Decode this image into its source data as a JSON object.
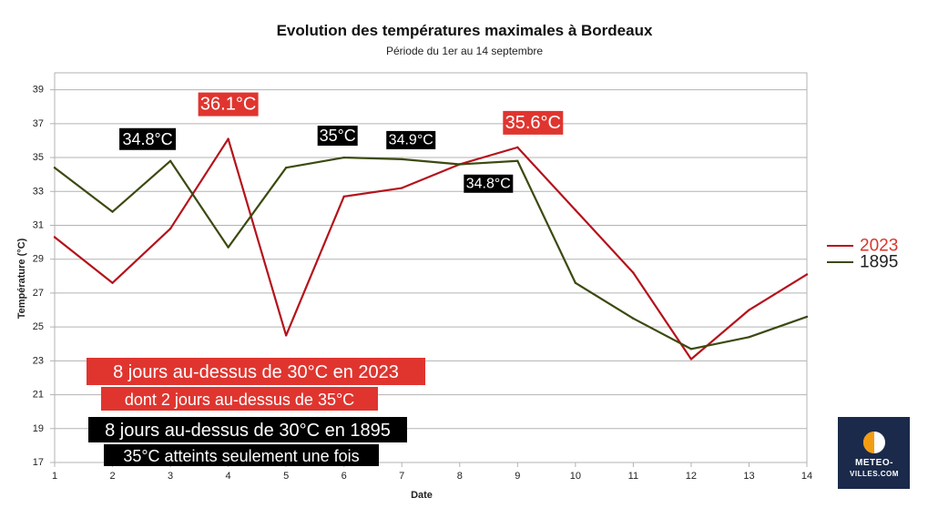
{
  "chart_data": {
    "type": "line",
    "title": "Evolution des températures maximales à Bordeaux",
    "subtitle": "Période du 1er au 14 septembre",
    "xlabel": "Date",
    "ylabel": "Température (°C)",
    "x": [
      1,
      2,
      3,
      4,
      5,
      6,
      7,
      8,
      9,
      10,
      11,
      12,
      13,
      14
    ],
    "ylim": [
      17,
      40
    ],
    "yticks": [
      17,
      19,
      21,
      23,
      25,
      27,
      29,
      31,
      33,
      35,
      37,
      39
    ],
    "grid": true,
    "legend_position": "right",
    "series": [
      {
        "name": "2023",
        "color": "#b5121b",
        "values": [
          30.3,
          27.6,
          30.8,
          36.1,
          24.5,
          32.7,
          33.2,
          34.6,
          35.6,
          31.9,
          28.2,
          23.1,
          26.0,
          28.1
        ]
      },
      {
        "name": "1895",
        "color": "#3b4a10",
        "values": [
          34.4,
          31.8,
          34.8,
          29.7,
          34.4,
          35.0,
          34.9,
          34.6,
          34.8,
          27.6,
          25.5,
          23.7,
          24.4,
          25.6
        ]
      }
    ],
    "legend": {
      "label_2023": "2023",
      "label_1895": "1895",
      "color_2023_text": "#d9362e"
    },
    "annotations": [
      {
        "text": "36.1°C",
        "style": "red",
        "x": 4,
        "y": 36.1
      },
      {
        "text": "35.6°C",
        "style": "red",
        "x": 9,
        "y": 35.6
      },
      {
        "text": "34.8°C",
        "style": "black",
        "x": 3,
        "y": 34.8
      },
      {
        "text": "35°C",
        "style": "black",
        "x": 6,
        "y": 35.0
      },
      {
        "text": "34.9°C",
        "style": "black",
        "x": 7,
        "y": 34.9
      },
      {
        "text": "34.8°C",
        "style": "black",
        "x": 9,
        "y": 34.8
      }
    ],
    "notes": {
      "red_line1": "8 jours au-dessus de 30°C en 2023",
      "red_line2": "dont 2 jours au-dessus de 35°C",
      "black_line1": "8 jours au-dessus de 30°C en 1895",
      "black_line2": "35°C atteints seulement une fois"
    },
    "colors": {
      "red_box": "#e0352f",
      "black_box": "#000000",
      "logo_bg": "#1b2a4a",
      "logo_accent": "#f39c12"
    }
  },
  "logo": {
    "line1": "METEO-",
    "line2": "VILLES.COM"
  }
}
